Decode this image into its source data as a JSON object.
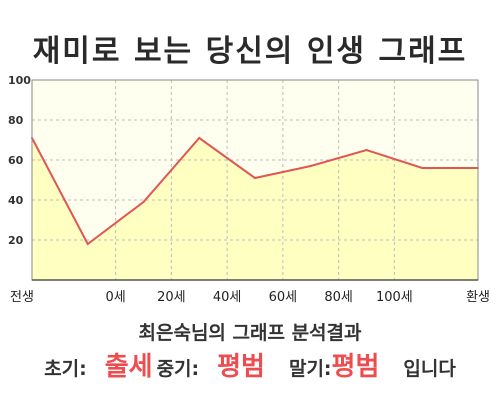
{
  "title": "재미로 보는 당신의 인생 그래프",
  "chart_data": {
    "type": "area",
    "title": "재미로 보는 당신의 인생 그래프",
    "xlabel": "",
    "ylabel": "",
    "x_tick_labels": [
      "전생",
      "0세",
      "20세",
      "40세",
      "60세",
      "80세",
      "100세",
      "환생"
    ],
    "y_ticks": [
      20,
      40,
      60,
      80,
      100
    ],
    "ylim": [
      0,
      100
    ],
    "grid": true,
    "series": [
      {
        "values": [
          71,
          18,
          39,
          71,
          51,
          57,
          65,
          56,
          56
        ]
      }
    ],
    "colors": {
      "line": "#e05656",
      "fill": "#ffffc2",
      "plot_bg": "#fffff0"
    }
  },
  "result": {
    "subtitle": "최은숙님의 그래프 분석결과",
    "early_label": "초기:",
    "early_value": "출세",
    "mid_label": "중기:",
    "mid_value": "평범",
    "late_label": "말기:",
    "late_value": "평범",
    "suffix": "입니다"
  }
}
